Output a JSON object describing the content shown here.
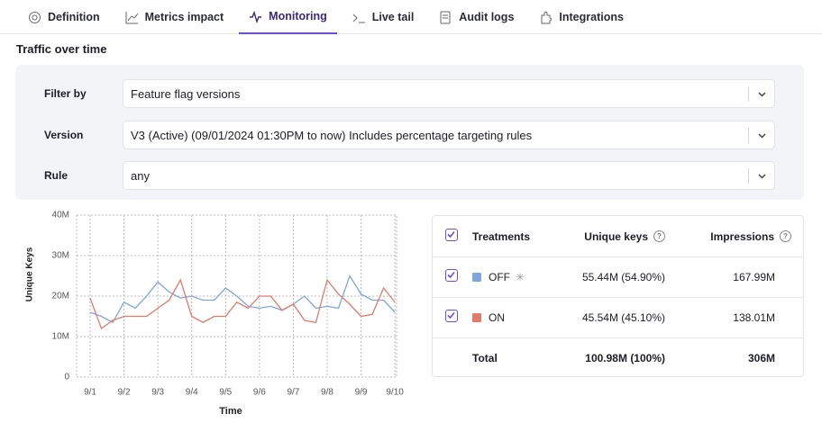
{
  "tabs": [
    {
      "label": "Definition"
    },
    {
      "label": "Metrics impact"
    },
    {
      "label": "Monitoring"
    },
    {
      "label": "Live tail"
    },
    {
      "label": "Audit logs"
    },
    {
      "label": "Integrations"
    }
  ],
  "active_tab": 2,
  "section_title": "Traffic over time",
  "filters": [
    {
      "label": "Filter by",
      "value": "Feature flag versions"
    },
    {
      "label": "Version",
      "value": "V3 (Active) (09/01/2024 01:30PM to now) Includes percentage targeting rules"
    },
    {
      "label": "Rule",
      "value": "any"
    }
  ],
  "chart_data": {
    "type": "line",
    "y_label": "Unique Keys",
    "x_label": "Time",
    "x": [
      1,
      1.333,
      1.667,
      2,
      2.333,
      2.667,
      3,
      3.333,
      3.667,
      4,
      4.333,
      4.667,
      5,
      5.333,
      5.667,
      6,
      6.333,
      6.667,
      7,
      7.333,
      7.667,
      8,
      8.333,
      8.667,
      9,
      9.333,
      9.667,
      10
    ],
    "series": [
      {
        "name": "OFF",
        "color": "#7fa6de",
        "values": [
          16,
          15,
          13.5,
          18.5,
          17,
          20,
          23.5,
          21,
          19.5,
          20,
          19,
          19,
          22,
          20,
          17.5,
          17,
          17.5,
          16.5,
          18,
          20,
          17,
          17.5,
          17,
          25,
          20.5,
          19,
          19,
          16
        ]
      },
      {
        "name": "ON",
        "color": "#e07b6a",
        "values": [
          19.5,
          12,
          14,
          15,
          15,
          15,
          17,
          19,
          24,
          15,
          13.5,
          15,
          15,
          18.5,
          17,
          20,
          20,
          16.5,
          18,
          14,
          13.5,
          24,
          20.5,
          18,
          15,
          15.5,
          22,
          18.5
        ]
      }
    ],
    "xlim": [
      0.6,
      10.05
    ],
    "xticks": [
      {
        "value": 1,
        "label": "9/1"
      },
      {
        "value": 2,
        "label": "9/2"
      },
      {
        "value": 3,
        "label": "9/3"
      },
      {
        "value": 4,
        "label": "9/4"
      },
      {
        "value": 5,
        "label": "9/5"
      },
      {
        "value": 6,
        "label": "9/6"
      },
      {
        "value": 7,
        "label": "9/7"
      },
      {
        "value": 8,
        "label": "9/8"
      },
      {
        "value": 9,
        "label": "9/9"
      },
      {
        "value": 10,
        "label": "9/10"
      }
    ],
    "ylim": [
      0,
      40
    ],
    "yticks": [
      0,
      {
        "value": 10,
        "label": "10M"
      },
      {
        "value": 20,
        "label": "20M"
      },
      {
        "value": 30,
        "label": "30M"
      },
      {
        "value": 40,
        "label": "40M"
      }
    ],
    "grid": true
  },
  "table": {
    "headers": [
      "Treatments",
      "Unique keys",
      "Impressions"
    ],
    "rows": [
      {
        "unique_keys": "55.44M (54.90%)",
        "impressions": "167.99M"
      },
      {
        "unique_keys": "45.54M (45.10%)",
        "impressions": "138.01M"
      }
    ],
    "total": {
      "label": "Total",
      "unique_keys": "100.98M (100%)",
      "impressions": "306M"
    }
  }
}
